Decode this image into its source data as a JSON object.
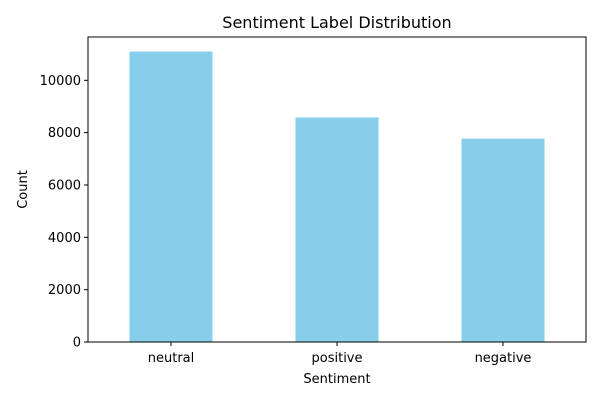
{
  "chart_data": {
    "type": "bar",
    "title": "Sentiment Label Distribution",
    "xlabel": "Sentiment",
    "ylabel": "Count",
    "categories": [
      "neutral",
      "positive",
      "negative"
    ],
    "values": [
      11100,
      8580,
      7770
    ],
    "ylim": [
      0,
      11655
    ],
    "yticks": [
      0,
      2000,
      4000,
      6000,
      8000,
      10000
    ],
    "bar_color": "#87CEEB",
    "grid": false,
    "legend": "none"
  }
}
